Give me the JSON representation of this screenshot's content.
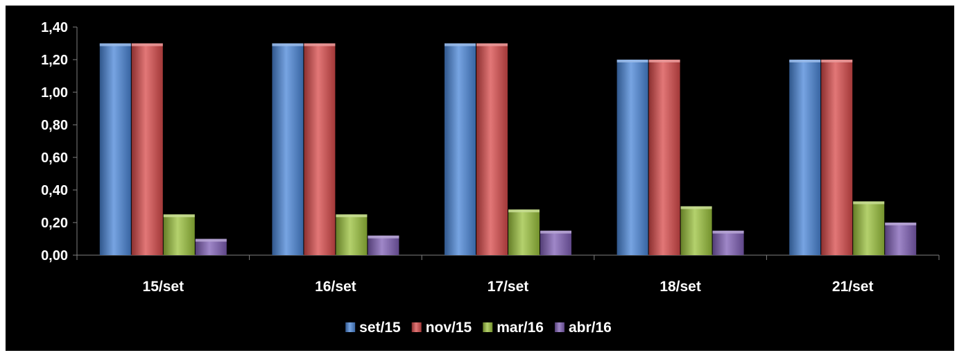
{
  "chart_data": {
    "type": "bar",
    "title": "",
    "xlabel": "",
    "ylabel": "",
    "categories": [
      "15/set",
      "16/set",
      "17/set",
      "18/set",
      "21/set"
    ],
    "series": [
      {
        "name": "set/15",
        "color": "#4a86d8",
        "values": [
          1.3,
          1.3,
          1.3,
          1.2,
          1.2
        ]
      },
      {
        "name": "nov/15",
        "color": "#d84a4a",
        "values": [
          1.3,
          1.3,
          1.3,
          1.2,
          1.2
        ]
      },
      {
        "name": "mar/16",
        "color": "#9bc23c",
        "values": [
          0.25,
          0.25,
          0.28,
          0.3,
          0.33
        ]
      },
      {
        "name": "abr/16",
        "color": "#7f5fb5",
        "values": [
          0.1,
          0.12,
          0.15,
          0.15,
          0.2
        ]
      }
    ],
    "ylim": [
      0,
      1.4
    ],
    "yticks": [
      "0,00",
      "0,20",
      "0,40",
      "0,60",
      "0,80",
      "1,00",
      "1,20",
      "1,40"
    ],
    "grid": false,
    "legend_position": "bottom"
  }
}
